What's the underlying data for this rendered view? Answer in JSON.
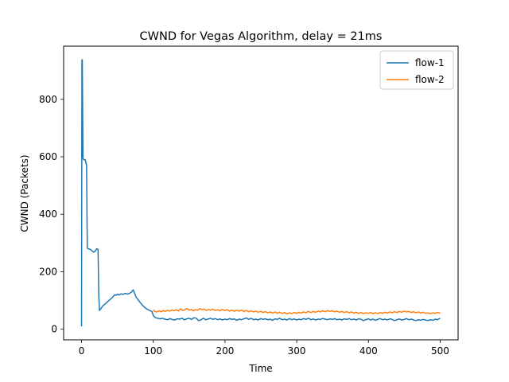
{
  "chart_data": {
    "type": "line",
    "title": "CWND for Vegas Algorithm, delay = 21ms",
    "xlabel": "Time",
    "ylabel": "CWND (Packets)",
    "xlim": [
      -25,
      525
    ],
    "ylim": [
      -37,
      985
    ],
    "xticks": [
      0,
      100,
      200,
      300,
      400,
      500
    ],
    "yticks": [
      0,
      200,
      400,
      600,
      800
    ],
    "grid": false,
    "legend_position": "top-right",
    "series": [
      {
        "name": "flow-1",
        "color": "#1f77b4",
        "points": [
          [
            0,
            10
          ],
          [
            0.5,
            935
          ],
          [
            1,
            938
          ],
          [
            2,
            595
          ],
          [
            3,
            590
          ],
          [
            5,
            590
          ],
          [
            6,
            580
          ],
          [
            7,
            570
          ],
          [
            8,
            282
          ],
          [
            9,
            280
          ],
          [
            12,
            278
          ],
          [
            15,
            272
          ],
          [
            17,
            268
          ],
          [
            19,
            272
          ],
          [
            21,
            280
          ],
          [
            23,
            278
          ],
          [
            24,
            120
          ],
          [
            25,
            65
          ],
          [
            27,
            72
          ],
          [
            30,
            82
          ],
          [
            33,
            88
          ],
          [
            36,
            95
          ],
          [
            39,
            102
          ],
          [
            42,
            108
          ],
          [
            44,
            113
          ],
          [
            46,
            120
          ],
          [
            48,
            118
          ],
          [
            50,
            122
          ],
          [
            52,
            119
          ],
          [
            55,
            123
          ],
          [
            58,
            121
          ],
          [
            61,
            125
          ],
          [
            64,
            122
          ],
          [
            67,
            125
          ],
          [
            70,
            130
          ],
          [
            72,
            137
          ],
          [
            74,
            125
          ],
          [
            76,
            112
          ],
          [
            79,
            102
          ],
          [
            82,
            92
          ],
          [
            85,
            83
          ],
          [
            88,
            76
          ],
          [
            91,
            70
          ],
          [
            95,
            65
          ],
          [
            98,
            62
          ],
          [
            100,
            48
          ],
          [
            103,
            40
          ],
          [
            106,
            38
          ],
          [
            110,
            36
          ],
          [
            113,
            38
          ],
          [
            116,
            35
          ],
          [
            120,
            33
          ],
          [
            123,
            37
          ],
          [
            126,
            34
          ],
          [
            130,
            32
          ],
          [
            133,
            36
          ],
          [
            137,
            35
          ],
          [
            140,
            38
          ],
          [
            143,
            33
          ],
          [
            147,
            36
          ],
          [
            150,
            38
          ],
          [
            153,
            34
          ],
          [
            157,
            40
          ],
          [
            160,
            38
          ],
          [
            163,
            30
          ],
          [
            166,
            32
          ],
          [
            170,
            38
          ],
          [
            173,
            33
          ],
          [
            176,
            35
          ],
          [
            180,
            38
          ],
          [
            183,
            34
          ],
          [
            186,
            37
          ],
          [
            190,
            33
          ],
          [
            193,
            36
          ],
          [
            196,
            32
          ],
          [
            200,
            35
          ],
          [
            203,
            33
          ],
          [
            206,
            37
          ],
          [
            210,
            34
          ],
          [
            213,
            36
          ],
          [
            216,
            31
          ],
          [
            220,
            35
          ],
          [
            223,
            33
          ],
          [
            226,
            36
          ],
          [
            230,
            39
          ],
          [
            233,
            34
          ],
          [
            236,
            38
          ],
          [
            240,
            33
          ],
          [
            243,
            35
          ],
          [
            246,
            32
          ],
          [
            250,
            37
          ],
          [
            253,
            34
          ],
          [
            256,
            36
          ],
          [
            260,
            33
          ],
          [
            263,
            35
          ],
          [
            266,
            31
          ],
          [
            270,
            36
          ],
          [
            273,
            34
          ],
          [
            276,
            38
          ],
          [
            280,
            33
          ],
          [
            283,
            35
          ],
          [
            286,
            32
          ],
          [
            290,
            37
          ],
          [
            293,
            33
          ],
          [
            296,
            36
          ],
          [
            300,
            32
          ],
          [
            303,
            35
          ],
          [
            306,
            33
          ],
          [
            310,
            37
          ],
          [
            313,
            34
          ],
          [
            316,
            38
          ],
          [
            320,
            33
          ],
          [
            323,
            36
          ],
          [
            326,
            32
          ],
          [
            330,
            35
          ],
          [
            333,
            34
          ],
          [
            336,
            37
          ],
          [
            340,
            35
          ],
          [
            343,
            33
          ],
          [
            346,
            36
          ],
          [
            350,
            34
          ],
          [
            353,
            37
          ],
          [
            356,
            33
          ],
          [
            360,
            35
          ],
          [
            363,
            32
          ],
          [
            366,
            36
          ],
          [
            370,
            34
          ],
          [
            373,
            37
          ],
          [
            376,
            33
          ],
          [
            380,
            35
          ],
          [
            383,
            32
          ],
          [
            386,
            36
          ],
          [
            390,
            34
          ],
          [
            393,
            30
          ],
          [
            396,
            33
          ],
          [
            400,
            36
          ],
          [
            403,
            32
          ],
          [
            406,
            35
          ],
          [
            410,
            31
          ],
          [
            413,
            34
          ],
          [
            416,
            37
          ],
          [
            420,
            33
          ],
          [
            423,
            35
          ],
          [
            426,
            32
          ],
          [
            430,
            36
          ],
          [
            433,
            34
          ],
          [
            436,
            30
          ],
          [
            440,
            33
          ],
          [
            443,
            36
          ],
          [
            446,
            32
          ],
          [
            450,
            34
          ],
          [
            453,
            37
          ],
          [
            456,
            33
          ],
          [
            460,
            35
          ],
          [
            463,
            32
          ],
          [
            466,
            30
          ],
          [
            470,
            33
          ],
          [
            473,
            31
          ],
          [
            476,
            34
          ],
          [
            480,
            32
          ],
          [
            483,
            30
          ],
          [
            486,
            33
          ],
          [
            490,
            31
          ],
          [
            493,
            35
          ],
          [
            496,
            33
          ],
          [
            500,
            38
          ]
        ]
      },
      {
        "name": "flow-2",
        "color": "#ff7f0e",
        "points": [
          [
            100,
            68
          ],
          [
            102,
            62
          ],
          [
            105,
            60
          ],
          [
            108,
            64
          ],
          [
            111,
            61
          ],
          [
            114,
            65
          ],
          [
            117,
            62
          ],
          [
            120,
            66
          ],
          [
            123,
            63
          ],
          [
            126,
            67
          ],
          [
            129,
            64
          ],
          [
            132,
            68
          ],
          [
            135,
            63
          ],
          [
            138,
            71
          ],
          [
            141,
            65
          ],
          [
            144,
            68
          ],
          [
            147,
            72
          ],
          [
            150,
            66
          ],
          [
            153,
            69
          ],
          [
            156,
            64
          ],
          [
            159,
            68
          ],
          [
            162,
            66
          ],
          [
            165,
            72
          ],
          [
            168,
            68
          ],
          [
            171,
            70
          ],
          [
            174,
            65
          ],
          [
            177,
            69
          ],
          [
            180,
            66
          ],
          [
            183,
            70
          ],
          [
            186,
            65
          ],
          [
            190,
            68
          ],
          [
            193,
            64
          ],
          [
            196,
            69
          ],
          [
            200,
            65
          ],
          [
            203,
            68
          ],
          [
            206,
            63
          ],
          [
            210,
            66
          ],
          [
            213,
            62
          ],
          [
            216,
            66
          ],
          [
            220,
            63
          ],
          [
            223,
            67
          ],
          [
            226,
            62
          ],
          [
            230,
            65
          ],
          [
            233,
            61
          ],
          [
            236,
            64
          ],
          [
            240,
            60
          ],
          [
            243,
            63
          ],
          [
            246,
            59
          ],
          [
            250,
            62
          ],
          [
            253,
            58
          ],
          [
            256,
            61
          ],
          [
            260,
            57
          ],
          [
            263,
            60
          ],
          [
            266,
            56
          ],
          [
            270,
            60
          ],
          [
            273,
            55
          ],
          [
            276,
            59
          ],
          [
            280,
            55
          ],
          [
            283,
            58
          ],
          [
            286,
            53
          ],
          [
            290,
            57
          ],
          [
            293,
            54
          ],
          [
            296,
            58
          ],
          [
            300,
            55
          ],
          [
            303,
            59
          ],
          [
            306,
            56
          ],
          [
            310,
            60
          ],
          [
            313,
            57
          ],
          [
            316,
            62
          ],
          [
            320,
            58
          ],
          [
            323,
            62
          ],
          [
            326,
            59
          ],
          [
            330,
            63
          ],
          [
            333,
            60
          ],
          [
            336,
            64
          ],
          [
            340,
            61
          ],
          [
            343,
            65
          ],
          [
            346,
            62
          ],
          [
            350,
            64
          ],
          [
            353,
            60
          ],
          [
            356,
            63
          ],
          [
            360,
            59
          ],
          [
            363,
            62
          ],
          [
            366,
            58
          ],
          [
            370,
            61
          ],
          [
            373,
            57
          ],
          [
            376,
            60
          ],
          [
            380,
            56
          ],
          [
            383,
            59
          ],
          [
            386,
            55
          ],
          [
            390,
            58
          ],
          [
            393,
            54
          ],
          [
            396,
            57
          ],
          [
            400,
            55
          ],
          [
            403,
            58
          ],
          [
            406,
            54
          ],
          [
            410,
            57
          ],
          [
            413,
            54
          ],
          [
            416,
            58
          ],
          [
            420,
            55
          ],
          [
            423,
            59
          ],
          [
            426,
            56
          ],
          [
            430,
            60
          ],
          [
            433,
            57
          ],
          [
            436,
            61
          ],
          [
            440,
            58
          ],
          [
            443,
            62
          ],
          [
            446,
            59
          ],
          [
            450,
            63
          ],
          [
            453,
            60
          ],
          [
            456,
            62
          ],
          [
            460,
            58
          ],
          [
            463,
            61
          ],
          [
            466,
            57
          ],
          [
            470,
            60
          ],
          [
            473,
            56
          ],
          [
            476,
            59
          ],
          [
            480,
            55
          ],
          [
            483,
            57
          ],
          [
            486,
            54
          ],
          [
            490,
            57
          ],
          [
            493,
            55
          ],
          [
            496,
            58
          ],
          [
            500,
            56
          ]
        ]
      }
    ]
  }
}
